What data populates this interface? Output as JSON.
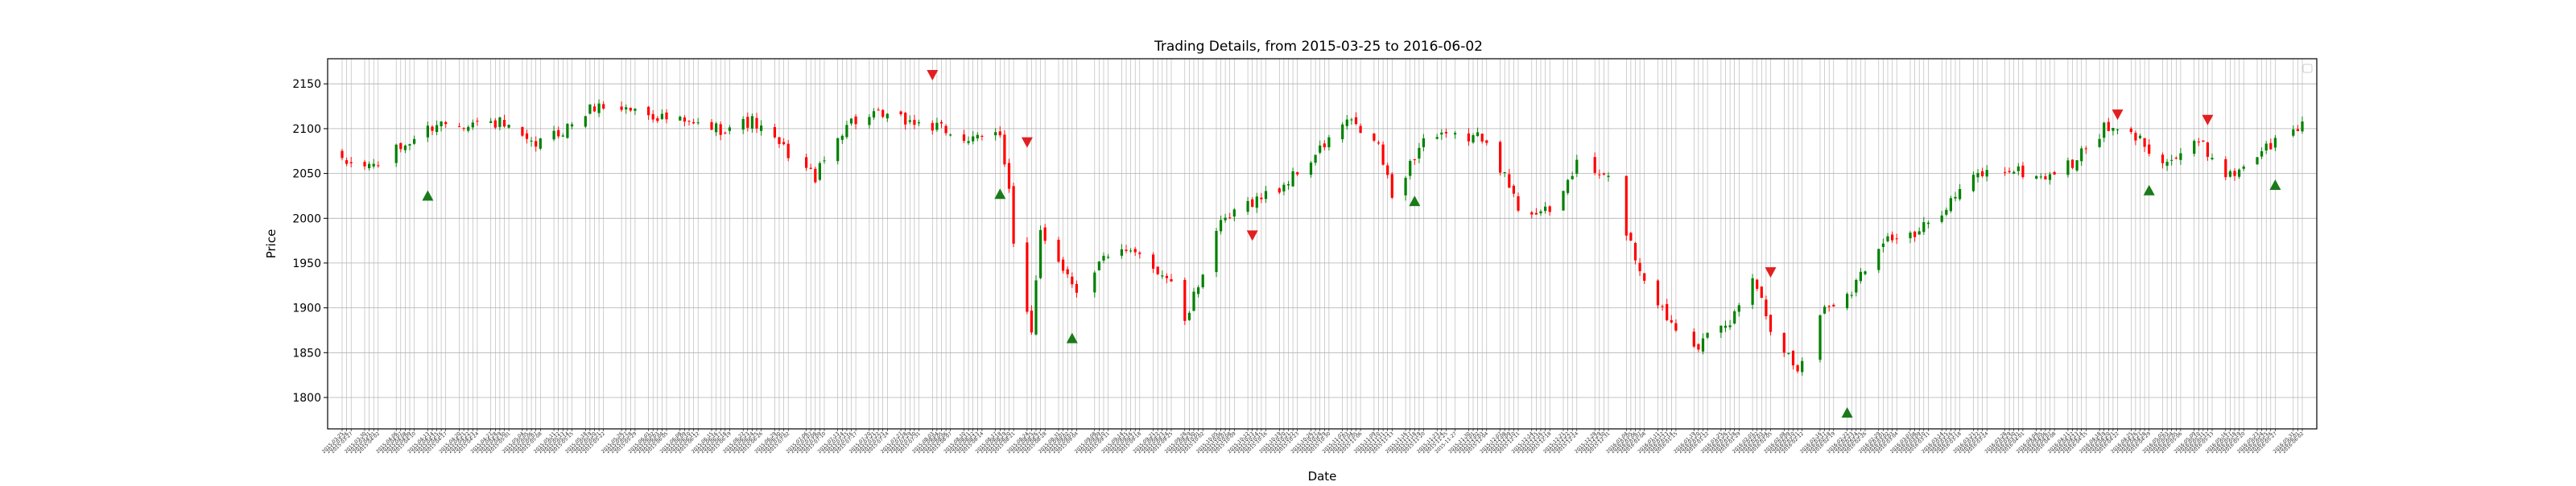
{
  "chart_data": {
    "type": "candlestick",
    "title": "Trading Details, from 2015-03-25 to 2016-06-02",
    "xlabel": "Date",
    "ylabel": "Price",
    "ylim": [
      1765,
      2178
    ],
    "yticks": [
      1800,
      1850,
      1900,
      1950,
      2000,
      2050,
      2100,
      2150
    ],
    "grid": true,
    "legend": "top-right (empty)",
    "colors": {
      "up": "#008000",
      "down": "#ff0000",
      "buy_marker": "#1a7a1a",
      "sell_marker": "#e02020",
      "grid": "#b0b0b0"
    },
    "x_start": "2015-03-25",
    "x_end": "2016-06-02",
    "close_keypoints": [
      [
        "2015-03-25",
        2061
      ],
      [
        "2015-04-01",
        2059
      ],
      [
        "2015-04-08",
        2082
      ],
      [
        "2015-04-15",
        2106
      ],
      [
        "2015-04-22",
        2107
      ],
      [
        "2015-04-29",
        2106
      ],
      [
        "2015-05-06",
        2080
      ],
      [
        "2015-05-13",
        2098
      ],
      [
        "2015-05-20",
        2125
      ],
      [
        "2015-05-27",
        2123
      ],
      [
        "2015-06-03",
        2114
      ],
      [
        "2015-06-10",
        2105
      ],
      [
        "2015-06-17",
        2100
      ],
      [
        "2015-06-24",
        2108
      ],
      [
        "2015-07-01",
        2077
      ],
      [
        "2015-07-08",
        2046
      ],
      [
        "2015-07-15",
        2107
      ],
      [
        "2015-07-22",
        2114
      ],
      [
        "2015-07-29",
        2108
      ],
      [
        "2015-08-05",
        2099
      ],
      [
        "2015-08-12",
        2086
      ],
      [
        "2015-08-18",
        2096
      ],
      [
        "2015-08-20",
        2035
      ],
      [
        "2015-08-21",
        1970
      ],
      [
        "2015-08-24",
        1893
      ],
      [
        "2015-08-25",
        1867
      ],
      [
        "2015-08-27",
        1987
      ],
      [
        "2015-09-04",
        1921
      ],
      [
        "2015-09-11",
        1961
      ],
      [
        "2015-09-18",
        1958
      ],
      [
        "2015-09-25",
        1931
      ],
      [
        "2015-09-28",
        1881
      ],
      [
        "2015-10-05",
        1987
      ],
      [
        "2015-10-12",
        2017
      ],
      [
        "2015-10-19",
        2033
      ],
      [
        "2015-10-26",
        2065
      ],
      [
        "2015-11-03",
        2109
      ],
      [
        "2015-11-10",
        2081
      ],
      [
        "2015-11-13",
        2023
      ],
      [
        "2015-11-20",
        2089
      ],
      [
        "2015-11-27",
        2090
      ],
      [
        "2015-12-04",
        2091
      ],
      [
        "2015-12-11",
        2012
      ],
      [
        "2015-12-18",
        2005
      ],
      [
        "2015-12-24",
        2060
      ],
      [
        "2015-12-31",
        2043
      ],
      [
        "2016-01-07",
        1943
      ],
      [
        "2016-01-13",
        1890
      ],
      [
        "2016-01-20",
        1859
      ],
      [
        "2016-01-27",
        1882
      ],
      [
        "2016-02-01",
        1939
      ],
      [
        "2016-02-05",
        1880
      ],
      [
        "2016-02-11",
        1829
      ],
      [
        "2016-02-16",
        1895
      ],
      [
        "2016-02-23",
        1921
      ],
      [
        "2016-03-01",
        1978
      ],
      [
        "2016-03-08",
        1979
      ],
      [
        "2016-03-15",
        2015
      ],
      [
        "2016-03-22",
        2049
      ],
      [
        "2016-03-29",
        2055
      ],
      [
        "2016-04-05",
        2045
      ],
      [
        "2016-04-12",
        2061
      ],
      [
        "2016-04-19",
        2100
      ],
      [
        "2016-04-26",
        2091
      ],
      [
        "2016-05-03",
        2063
      ],
      [
        "2016-05-10",
        2084
      ],
      [
        "2016-05-17",
        2047
      ],
      [
        "2016-05-24",
        2076
      ],
      [
        "2016-05-31",
        2097
      ],
      [
        "2016-06-02",
        2105
      ]
    ],
    "buy_signals": [
      [
        "2015-04-13",
        2025
      ],
      [
        "2015-08-18",
        2027
      ],
      [
        "2015-09-03",
        1866
      ],
      [
        "2015-11-18",
        2019
      ],
      [
        "2016-02-22",
        1783
      ],
      [
        "2016-04-29",
        2031
      ],
      [
        "2016-05-27",
        2037
      ]
    ],
    "sell_signals": [
      [
        "2015-08-03",
        2160
      ],
      [
        "2015-08-24",
        2085
      ],
      [
        "2015-10-13",
        1981
      ],
      [
        "2016-02-05",
        1940
      ],
      [
        "2016-04-22",
        2116
      ],
      [
        "2016-05-12",
        2110
      ]
    ]
  }
}
